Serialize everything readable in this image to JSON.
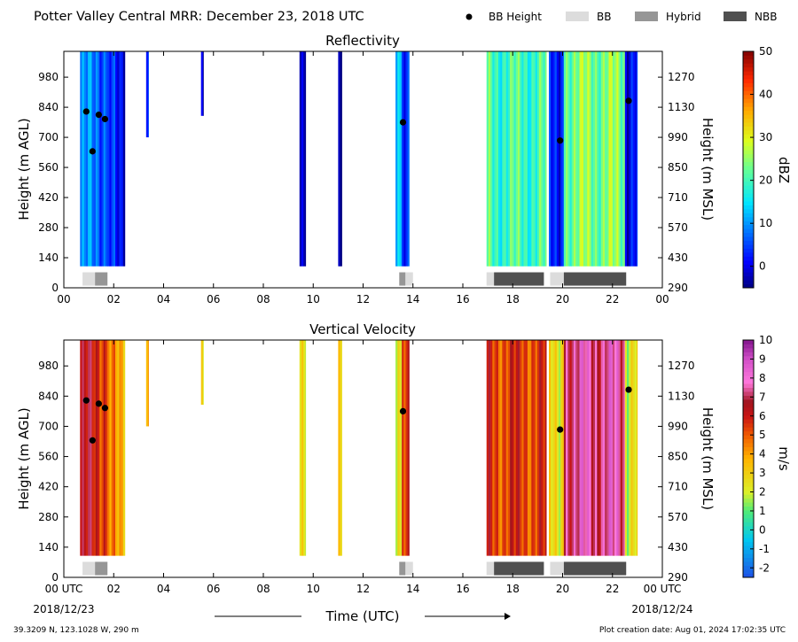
{
  "header": {
    "title": "Potter Valley Central MRR:  December 23, 2018 UTC",
    "legend": [
      {
        "label": "BB Height",
        "color": "#000000",
        "kind": "dot"
      },
      {
        "label": "BB",
        "color": "#dcdcdc",
        "kind": "bar"
      },
      {
        "label": "Hybrid",
        "color": "#969696",
        "kind": "bar"
      },
      {
        "label": "NBB",
        "color": "#505050",
        "kind": "bar"
      }
    ]
  },
  "footer": {
    "location": "39.3209 N, 123.1028 W, 290 m",
    "creation": "Plot creation date: Aug 01, 2024 17:02:35 UTC",
    "xlabel": "Time (UTC)",
    "start_date": "2018/12/23",
    "end_date": "2018/12/24"
  },
  "chart_data": [
    {
      "type": "heatmap",
      "title": "Reflectivity",
      "xlabel": "",
      "ylabel": "Height (m AGL)",
      "y2label": "Height (m MSL)",
      "x_ticks": [
        "00",
        "02",
        "04",
        "06",
        "08",
        "10",
        "12",
        "14",
        "16",
        "18",
        "20",
        "22",
        "00"
      ],
      "xlim": [
        0,
        24
      ],
      "ylim": [
        0,
        1100
      ],
      "y_ticks": [
        0,
        140,
        280,
        420,
        560,
        700,
        840,
        980
      ],
      "y2_ticks": [
        290,
        430,
        570,
        710,
        850,
        990,
        1130,
        1270
      ],
      "colorbar": {
        "label": "dBZ",
        "min": -5,
        "max": 50,
        "ticks": [
          0,
          10,
          20,
          30,
          40,
          50
        ],
        "colormap": "jet"
      },
      "bb_height_points": [
        {
          "time": 0.9,
          "height": 820
        },
        {
          "time": 1.15,
          "height": 635
        },
        {
          "time": 1.4,
          "height": 805
        },
        {
          "time": 1.65,
          "height": 785
        },
        {
          "time": 13.6,
          "height": 770
        },
        {
          "time": 19.9,
          "height": 685
        },
        {
          "time": 22.65,
          "height": 870
        }
      ],
      "bb_type_segments": [
        {
          "start": 0.75,
          "end": 1.25,
          "type": "BB"
        },
        {
          "start": 1.25,
          "end": 1.75,
          "type": "Hybrid"
        },
        {
          "start": 13.45,
          "end": 13.7,
          "type": "Hybrid"
        },
        {
          "start": 13.7,
          "end": 14.0,
          "type": "BB"
        },
        {
          "start": 16.95,
          "end": 17.25,
          "type": "BB"
        },
        {
          "start": 17.25,
          "end": 19.25,
          "type": "NBB"
        },
        {
          "start": 19.5,
          "end": 20.05,
          "type": "BB"
        },
        {
          "start": 20.05,
          "end": 22.55,
          "type": "NBB"
        }
      ],
      "echo_periods": [
        {
          "start": 0.65,
          "end": 1.75,
          "level": 8,
          "top": 1100,
          "bottom": 100
        },
        {
          "start": 1.75,
          "end": 2.45,
          "level": 2,
          "top": 1100,
          "bottom": 100
        },
        {
          "start": 3.3,
          "end": 3.4,
          "level": 0,
          "top": 1100,
          "bottom": 700
        },
        {
          "start": 5.5,
          "end": 5.6,
          "level": 0,
          "top": 1100,
          "bottom": 800
        },
        {
          "start": 9.45,
          "end": 9.7,
          "level": 0,
          "top": 1100,
          "bottom": 100
        },
        {
          "start": 11.0,
          "end": 11.15,
          "level": 0,
          "top": 1100,
          "bottom": 100
        },
        {
          "start": 13.3,
          "end": 13.55,
          "level": 12,
          "top": 1100,
          "bottom": 100
        },
        {
          "start": 13.55,
          "end": 13.85,
          "level": 1,
          "top": 1100,
          "bottom": 100
        },
        {
          "start": 16.95,
          "end": 19.35,
          "level": 20,
          "top": 1100,
          "bottom": 100
        },
        {
          "start": 19.45,
          "end": 20.05,
          "level": 4,
          "top": 1100,
          "bottom": 100
        },
        {
          "start": 20.05,
          "end": 22.5,
          "level": 24,
          "top": 1100,
          "bottom": 100
        },
        {
          "start": 22.5,
          "end": 23.0,
          "level": 2,
          "top": 1100,
          "bottom": 100
        }
      ]
    },
    {
      "type": "heatmap",
      "title": "Vertical Velocity",
      "xlabel": "Time (UTC)",
      "ylabel": "Height (m AGL)",
      "y2label": "Height (m MSL)",
      "x_ticks": [
        "00 UTC",
        "02",
        "04",
        "06",
        "08",
        "10",
        "12",
        "14",
        "16",
        "18",
        "20",
        "22",
        "00 UTC"
      ],
      "xlim": [
        0,
        24
      ],
      "ylim": [
        0,
        1100
      ],
      "y_ticks": [
        0,
        140,
        280,
        420,
        560,
        700,
        840,
        980
      ],
      "y2_ticks": [
        290,
        430,
        570,
        710,
        850,
        990,
        1130,
        1270
      ],
      "colorbar": {
        "label": "m/s",
        "min": -2.5,
        "max": 10,
        "ticks": [
          -2,
          -1,
          0,
          1,
          2,
          3,
          4,
          5,
          6,
          7,
          8,
          9,
          10
        ],
        "colormap": "velocity"
      },
      "bb_height_points": [
        {
          "time": 0.9,
          "height": 820
        },
        {
          "time": 1.15,
          "height": 635
        },
        {
          "time": 1.4,
          "height": 805
        },
        {
          "time": 1.65,
          "height": 785
        },
        {
          "time": 13.6,
          "height": 770
        },
        {
          "time": 19.9,
          "height": 685
        },
        {
          "time": 22.65,
          "height": 870
        }
      ],
      "bb_type_segments": [
        {
          "start": 0.75,
          "end": 1.25,
          "type": "BB"
        },
        {
          "start": 1.25,
          "end": 1.75,
          "type": "Hybrid"
        },
        {
          "start": 13.45,
          "end": 13.7,
          "type": "Hybrid"
        },
        {
          "start": 13.7,
          "end": 14.0,
          "type": "BB"
        },
        {
          "start": 16.95,
          "end": 17.25,
          "type": "BB"
        },
        {
          "start": 17.25,
          "end": 19.25,
          "type": "NBB"
        },
        {
          "start": 19.5,
          "end": 20.05,
          "type": "BB"
        },
        {
          "start": 20.05,
          "end": 22.55,
          "type": "NBB"
        }
      ],
      "echo_periods": [
        {
          "start": 0.65,
          "end": 1.75,
          "level": 6,
          "top": 1100,
          "bottom": 100
        },
        {
          "start": 1.75,
          "end": 2.45,
          "level": 4,
          "top": 1100,
          "bottom": 100
        },
        {
          "start": 3.3,
          "end": 3.4,
          "level": 3,
          "top": 1100,
          "bottom": 700
        },
        {
          "start": 5.5,
          "end": 5.6,
          "level": 3,
          "top": 1100,
          "bottom": 800
        },
        {
          "start": 9.45,
          "end": 9.7,
          "level": 3,
          "top": 1100,
          "bottom": 100
        },
        {
          "start": 11.0,
          "end": 11.15,
          "level": 4,
          "top": 1100,
          "bottom": 100
        },
        {
          "start": 13.3,
          "end": 13.55,
          "level": 2,
          "top": 1100,
          "bottom": 100
        },
        {
          "start": 13.55,
          "end": 13.85,
          "level": 5,
          "top": 1100,
          "bottom": 100
        },
        {
          "start": 16.95,
          "end": 19.35,
          "level": 5.5,
          "top": 1100,
          "bottom": 100
        },
        {
          "start": 19.45,
          "end": 20.05,
          "level": 3,
          "top": 1100,
          "bottom": 100
        },
        {
          "start": 20.05,
          "end": 22.5,
          "level": 7.5,
          "top": 1100,
          "bottom": 100
        },
        {
          "start": 22.5,
          "end": 23.0,
          "level": 2.5,
          "top": 1100,
          "bottom": 100
        }
      ]
    }
  ]
}
